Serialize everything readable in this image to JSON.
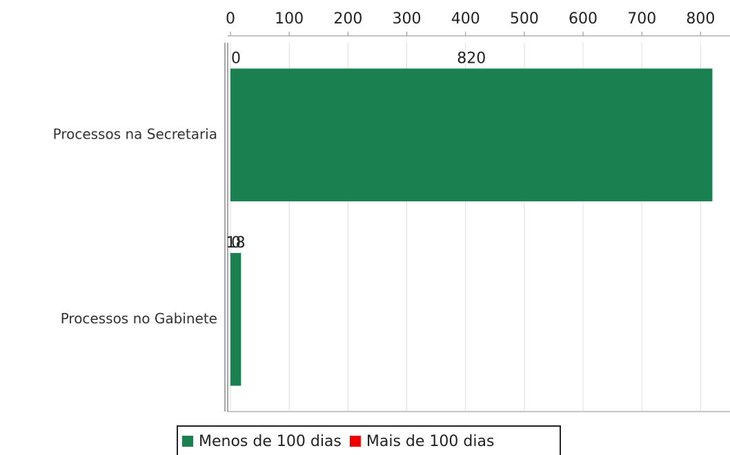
{
  "chart_data": {
    "type": "bar",
    "orientation": "horizontal",
    "stacked": true,
    "categories": [
      "Processos na Secretaria",
      "Processos no Gabinete"
    ],
    "series": [
      {
        "name": "Menos de 100 dias",
        "color": "#1a8050",
        "values": [
          820,
          18
        ]
      },
      {
        "name": "Mais de 100 dias",
        "color": "#ee0000",
        "values": [
          0,
          0
        ]
      }
    ],
    "xlim": [
      0,
      850
    ],
    "xticks": [
      0,
      100,
      200,
      300,
      400,
      500,
      600,
      700,
      800
    ],
    "grid": true,
    "legend": "bottom"
  }
}
